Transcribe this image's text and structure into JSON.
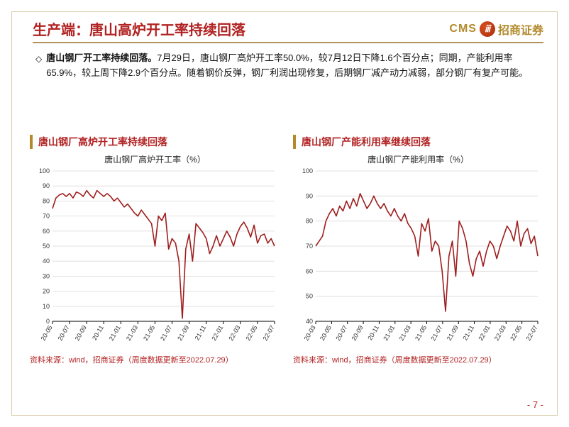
{
  "header": {
    "title": "生产端：唐山高炉开工率持续回落",
    "cms": "CMS",
    "logo_glyph": "ⅲ",
    "cn_name": "招商证券"
  },
  "body": {
    "bullet": "◇",
    "bold": "唐山钢厂开工率持续回落。",
    "rest": "7月29日，唐山钢厂高炉开工率50.0%，较7月12日下降1.6个百分点；同期，产能利用率65.9%，较上周下降2.9个百分点。随着钢价反弹，钢厂利润出现修复，后期钢厂减产动力减弱，部分钢厂有复产可能。"
  },
  "chart_left": {
    "heading": "唐山钢厂高炉开工率持续回落",
    "inner_title": "唐山钢厂高炉开工率（%）",
    "type": "line",
    "ylim": [
      0,
      100
    ],
    "ytick_step": 10,
    "yticks": [
      0,
      10,
      20,
      30,
      40,
      50,
      60,
      70,
      80,
      90,
      100
    ],
    "xlabels": [
      "20-05",
      "20-07",
      "20-09",
      "20-11",
      "21-01",
      "21-03",
      "21-05",
      "21-07",
      "21-09",
      "21-11",
      "22-01",
      "22-03",
      "22-05",
      "22-07"
    ],
    "line_color": "#9f1d1d",
    "grid_color": "#d9d9d9",
    "axis_color": "#000000",
    "tick_fontsize": 9,
    "line_width": 1.6,
    "values": [
      75,
      82,
      84,
      85,
      83,
      85,
      82,
      86,
      85,
      83,
      87,
      84,
      82,
      87,
      85,
      83,
      85,
      83,
      80,
      82,
      79,
      76,
      78,
      75,
      72,
      70,
      74,
      71,
      68,
      65,
      50,
      70,
      67,
      72,
      48,
      55,
      52,
      40,
      2,
      48,
      58,
      40,
      65,
      62,
      59,
      55,
      45,
      50,
      57,
      50,
      55,
      60,
      56,
      50,
      58,
      63,
      66,
      62,
      56,
      64,
      52,
      57,
      58,
      52,
      55,
      50
    ],
    "source": "资料来源：wind，招商证券（周度数据更新至2022.07.29）"
  },
  "chart_right": {
    "heading": "唐山钢厂产能利用率继续回落",
    "inner_title": "唐山钢厂产能利用率（%）",
    "type": "line",
    "ylim": [
      40,
      100
    ],
    "ytick_step": 10,
    "yticks": [
      40,
      50,
      60,
      70,
      80,
      90,
      100
    ],
    "xlabels": [
      "20-03",
      "20-05",
      "20-07",
      "20-09",
      "20-11",
      "21-01",
      "21-03",
      "21-05",
      "21-07",
      "21-09",
      "21-11",
      "22-01",
      "22-03",
      "22-05",
      "22-07"
    ],
    "line_color": "#9f1d1d",
    "grid_color": "#d9d9d9",
    "axis_color": "#000000",
    "tick_fontsize": 9,
    "line_width": 1.6,
    "values": [
      70,
      72,
      74,
      80,
      83,
      85,
      82,
      86,
      84,
      88,
      85,
      89,
      86,
      91,
      88,
      85,
      87,
      90,
      87,
      85,
      87,
      84,
      82,
      85,
      82,
      80,
      83,
      79,
      77,
      74,
      66,
      79,
      76,
      81,
      68,
      72,
      70,
      60,
      44,
      66,
      72,
      58,
      80,
      77,
      72,
      63,
      58,
      65,
      68,
      62,
      68,
      72,
      70,
      65,
      70,
      74,
      78,
      76,
      72,
      80,
      70,
      75,
      77,
      71,
      74,
      66
    ],
    "source": "资料来源：wind，招商证券（周度数据更新至2022.07.29）"
  },
  "page": "- 7 -"
}
